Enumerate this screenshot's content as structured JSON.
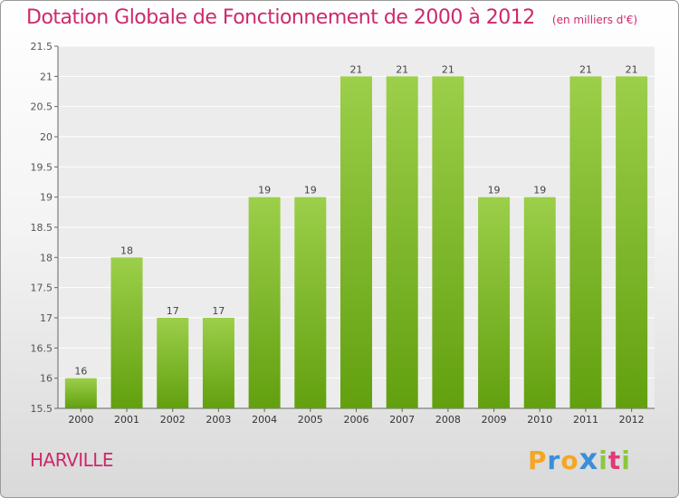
{
  "chart_data": {
    "type": "bar",
    "title": "Dotation Globale de Fonctionnement de 2000 à 2012",
    "unit_note": "(en milliers d'€)",
    "categories": [
      "2000",
      "2001",
      "2002",
      "2003",
      "2004",
      "2005",
      "2006",
      "2007",
      "2008",
      "2009",
      "2010",
      "2011",
      "2012"
    ],
    "values": [
      16,
      18,
      17,
      17,
      19,
      19,
      21,
      21,
      21,
      19,
      19,
      21,
      21
    ],
    "data_labels": [
      "16",
      "18",
      "17",
      "17",
      "19",
      "19",
      "21",
      "21",
      "21",
      "19",
      "19",
      "21",
      "21"
    ],
    "ylim": [
      15.5,
      21.5
    ],
    "yticks": [
      "15.5",
      "16",
      "16.5",
      "17",
      "17.5",
      "18",
      "18.5",
      "19",
      "19.5",
      "20",
      "20.5",
      "21",
      "21.5"
    ],
    "grid": true,
    "bar_color_top": "#9ccf4a",
    "bar_color_bottom": "#62a00f",
    "xlabel": "",
    "ylabel": ""
  },
  "commune": "HARVILLE",
  "logo": {
    "letters": [
      "P",
      "r",
      "o",
      "x",
      "i",
      "t",
      "i"
    ],
    "colors": [
      "#f5a623",
      "#3a8fd6",
      "#f5a623",
      "#3a8fd6",
      "#8cc63f",
      "#e03a7a",
      "#8cc63f"
    ]
  },
  "colors": {
    "title": "#cc2a6b",
    "axis": "#555555",
    "grid": "#ffffff"
  }
}
